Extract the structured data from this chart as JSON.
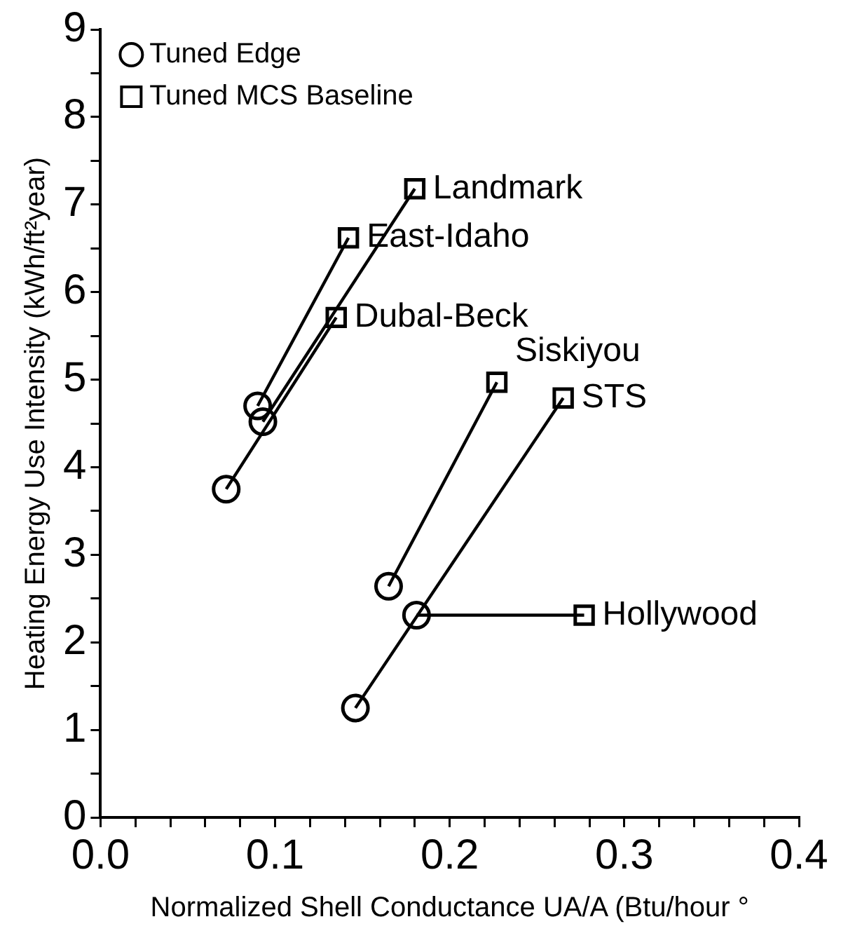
{
  "chart_data": {
    "type": "scatter",
    "xlabel": "Normalized Shell Conductance UA/A (Btu/hour °",
    "ylabel": "Heating Energy Use Intensity (kWh/ft²year)",
    "xlim": [
      0,
      0.4
    ],
    "ylim": [
      0,
      9
    ],
    "xticks": [
      {
        "value": 0,
        "label": "0.0"
      },
      {
        "value": 0.02,
        "label": null
      },
      {
        "value": 0.04,
        "label": null
      },
      {
        "value": 0.06,
        "label": null
      },
      {
        "value": 0.08,
        "label": null
      },
      {
        "value": 0.1,
        "label": "0.1"
      },
      {
        "value": 0.12,
        "label": null
      },
      {
        "value": 0.14,
        "label": null
      },
      {
        "value": 0.16,
        "label": null
      },
      {
        "value": 0.18,
        "label": null
      },
      {
        "value": 0.2,
        "label": "0.2"
      },
      {
        "value": 0.22,
        "label": null
      },
      {
        "value": 0.24,
        "label": null
      },
      {
        "value": 0.26,
        "label": null
      },
      {
        "value": 0.28,
        "label": null
      },
      {
        "value": 0.3,
        "label": "0.3"
      },
      {
        "value": 0.32,
        "label": null
      },
      {
        "value": 0.34,
        "label": null
      },
      {
        "value": 0.36,
        "label": null
      },
      {
        "value": 0.38,
        "label": null
      },
      {
        "value": 0.4,
        "label": "0.4"
      }
    ],
    "yticks": [
      0,
      {
        "value": 0.5,
        "label": null
      },
      1,
      {
        "value": 1.5,
        "label": null
      },
      2,
      {
        "value": 2.5,
        "label": null
      },
      3,
      {
        "value": 3.5,
        "label": null
      },
      4,
      {
        "value": 4.5,
        "label": null
      },
      5,
      {
        "value": 5.5,
        "label": null
      },
      6,
      {
        "value": 6.5,
        "label": null
      },
      7,
      {
        "value": 7.5,
        "label": null
      },
      8,
      {
        "value": 8.5,
        "label": null
      },
      9
    ],
    "grid": false,
    "legend": "top left",
    "series": [
      {
        "name": "Tuned Edge",
        "type": "scatter",
        "marker": "circle",
        "color": "#000000",
        "x": [
          0.09,
          0.093,
          0.072,
          0.165,
          0.146,
          0.181
        ],
        "values": [
          4.7,
          4.52,
          3.75,
          2.64,
          1.25,
          2.31
        ]
      },
      {
        "name": "Tuned MCS Baseline",
        "type": "scatter",
        "marker": "square",
        "color": "#000000",
        "x": [
          0.142,
          0.18,
          0.135,
          0.227,
          0.265,
          0.277
        ],
        "values": [
          6.62,
          7.18,
          5.71,
          4.97,
          4.79,
          2.31
        ]
      },
      {
        "type": "line",
        "marker": "none",
        "color": "#000000",
        "x": [
          0.09,
          0.142
        ],
        "values": [
          4.7,
          6.62
        ]
      },
      {
        "type": "line",
        "marker": "none",
        "color": "#000000",
        "x": [
          0.093,
          0.18
        ],
        "values": [
          4.52,
          7.18
        ]
      },
      {
        "type": "line",
        "marker": "none",
        "color": "#000000",
        "x": [
          0.072,
          0.135
        ],
        "values": [
          3.75,
          5.71
        ]
      },
      {
        "type": "line",
        "marker": "none",
        "color": "#000000",
        "x": [
          0.165,
          0.227
        ],
        "values": [
          2.64,
          4.97
        ]
      },
      {
        "type": "line",
        "marker": "none",
        "color": "#000000",
        "x": [
          0.146,
          0.265
        ],
        "values": [
          1.25,
          4.79
        ]
      },
      {
        "type": "line",
        "marker": "none",
        "color": "#000000",
        "x": [
          0.181,
          0.277
        ],
        "values": [
          2.31,
          2.31
        ]
      }
    ],
    "annotations": [
      {
        "text": "East-Idaho",
        "x": 0.142,
        "y": 6.62
      },
      {
        "text": "Landmark",
        "x": 0.18,
        "y": 7.18
      },
      {
        "text": "Dubal-Beck",
        "x": 0.135,
        "y": 5.71
      },
      {
        "text": "Siskiyou",
        "x": 0.227,
        "y": 4.97
      },
      {
        "text": "STS",
        "x": 0.265,
        "y": 4.79
      },
      {
        "text": "Hollywood",
        "x": 0.277,
        "y": 2.31
      }
    ]
  }
}
